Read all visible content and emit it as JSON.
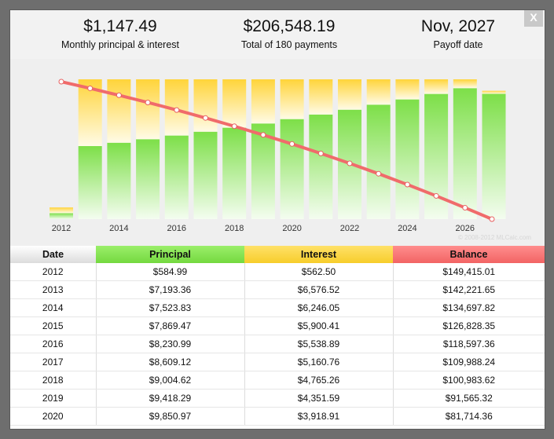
{
  "summary": {
    "monthly": {
      "value": "$1,147.49",
      "label": "Monthly principal & interest"
    },
    "total": {
      "value": "$206,548.19",
      "label": "Total of 180 payments"
    },
    "payoff": {
      "value": "Nov, 2027",
      "label": "Payoff date"
    }
  },
  "close_label": "X",
  "copyright": "© 2008-2012 MLCalc.com",
  "colors": {
    "principal": "#7ddf48",
    "interest": "#ffd43a",
    "balance": "#f06b6b"
  },
  "chart_data": {
    "type": "bar",
    "stacked": true,
    "categories": [
      "2012",
      "2013",
      "2014",
      "2015",
      "2016",
      "2017",
      "2018",
      "2019",
      "2020",
      "2021",
      "2022",
      "2023",
      "2024",
      "2025",
      "2026",
      "2027"
    ],
    "x_tick_labels": [
      "2012",
      "2014",
      "2016",
      "2018",
      "2020",
      "2022",
      "2024",
      "2026"
    ],
    "series": [
      {
        "name": "Principal",
        "values": [
          584.99,
          7193.36,
          7523.83,
          7869.47,
          8230.99,
          8609.12,
          9004.62,
          9418.29,
          9850.97,
          10303.5,
          10776.8,
          11271.9,
          11789.7,
          12331.4,
          12897.9,
          12340.0
        ]
      },
      {
        "name": "Interest",
        "values": [
          562.5,
          6576.52,
          6246.05,
          5900.41,
          5538.89,
          5160.76,
          4765.26,
          4351.59,
          3918.91,
          3466.4,
          2993.1,
          2498.0,
          1980.2,
          1438.5,
          872.0,
          300.0
        ]
      },
      {
        "name": "Balance",
        "type": "line",
        "values": [
          149415.01,
          142221.65,
          134697.82,
          126828.35,
          118597.36,
          109988.24,
          100983.62,
          91565.32,
          81714.36,
          71410.8,
          60634.0,
          49362.1,
          37572.4,
          25241.0,
          12343.1,
          0
        ]
      }
    ],
    "grid": false,
    "legend": "none"
  },
  "table": {
    "headers": [
      "Date",
      "Principal",
      "Interest",
      "Balance"
    ],
    "rows": [
      [
        "2012",
        "$584.99",
        "$562.50",
        "$149,415.01"
      ],
      [
        "2013",
        "$7,193.36",
        "$6,576.52",
        "$142,221.65"
      ],
      [
        "2014",
        "$7,523.83",
        "$6,246.05",
        "$134,697.82"
      ],
      [
        "2015",
        "$7,869.47",
        "$5,900.41",
        "$126,828.35"
      ],
      [
        "2016",
        "$8,230.99",
        "$5,538.89",
        "$118,597.36"
      ],
      [
        "2017",
        "$8,609.12",
        "$5,160.76",
        "$109,988.24"
      ],
      [
        "2018",
        "$9,004.62",
        "$4,765.26",
        "$100,983.62"
      ],
      [
        "2019",
        "$9,418.29",
        "$4,351.59",
        "$91,565.32"
      ],
      [
        "2020",
        "$9,850.97",
        "$3,918.91",
        "$81,714.36"
      ]
    ]
  }
}
